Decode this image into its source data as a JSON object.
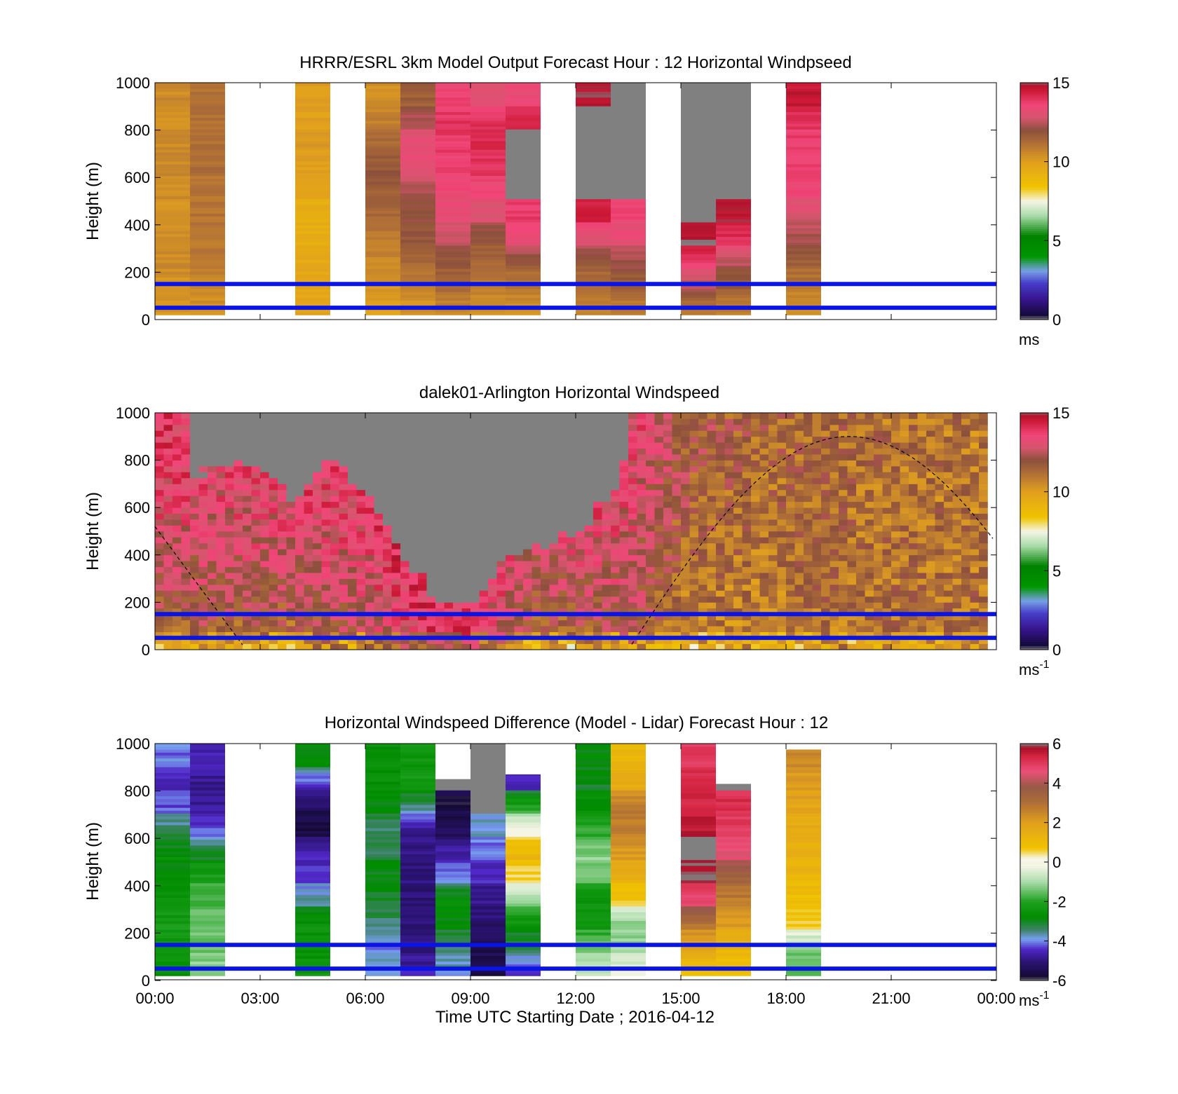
{
  "chart_data": [
    {
      "type": "heatmap",
      "id": "model",
      "title": "HRRR/ESRL 3km Model Output   Forecast Hour : 12 Horizontal Windpseed",
      "ylabel": "Height (m)",
      "xlabel": "",
      "ylim": [
        0,
        1000
      ],
      "xlim_hours": [
        0,
        24
      ],
      "y_ticks": [
        "0",
        "200",
        "400",
        "600",
        "800",
        "1000"
      ],
      "x_ticks": [],
      "colorbar": {
        "ticks": [
          "0",
          "5",
          "10",
          "15"
        ],
        "unit": "ms",
        "unit_sup": "",
        "range": [
          0,
          15
        ]
      },
      "reference_lines_m": [
        50,
        150
      ],
      "columns": [
        {
          "hour": 0,
          "top": 1000,
          "values": [
            10.2,
            10.3,
            10.5,
            10.4,
            10.3,
            10.4,
            10.6,
            10.5,
            10.4,
            10.5
          ]
        },
        {
          "hour": 1,
          "top": 1000,
          "values": [
            10.3,
            10.6,
            10.9,
            11.0,
            11.1,
            11.0,
            11.2,
            11.1,
            11.2,
            11.1
          ]
        },
        {
          "hour": 4,
          "top": 1000,
          "values": [
            9.8,
            9.7,
            9.6,
            9.5,
            9.4,
            9.6,
            10.0,
            10.1,
            10.0,
            10.0
          ]
        },
        {
          "hour": 6,
          "top": 1000,
          "values": [
            9.8,
            10.3,
            10.5,
            10.9,
            11.3,
            11.6,
            11.9,
            11.5,
            10.9,
            10.4
          ]
        },
        {
          "hour": 7,
          "top": 1000,
          "values": [
            10.2,
            10.8,
            11.3,
            11.8,
            12.0,
            12.2,
            13.2,
            13.4,
            12.6,
            11.6
          ]
        },
        {
          "hour": 8,
          "top": 1000,
          "values": [
            10.6,
            11.4,
            11.8,
            12.5,
            13.2,
            13.4,
            13.6,
            13.8,
            14.0,
            13.6
          ]
        },
        {
          "hour": 9,
          "top": 1000,
          "values": [
            10.4,
            10.9,
            11.3,
            11.8,
            12.9,
            13.4,
            13.9,
            14.1,
            14.2,
            13.0
          ]
        },
        {
          "hour": 10,
          "top": 1000,
          "values": [
            10.3,
            11.0,
            11.7,
            13.3,
            13.8,
            "nan",
            "nan",
            "nan",
            14.3,
            13.4
          ]
        },
        {
          "hour": 12,
          "top": 1000,
          "values": [
            10.6,
            11.3,
            11.6,
            13.0,
            14.3,
            "nan",
            "nan",
            "nan",
            "nan",
            14.8
          ]
        },
        {
          "hour": 13,
          "top": 1000,
          "values": [
            10.7,
            11.6,
            12.1,
            13.2,
            13.6,
            "nan",
            "nan",
            "nan",
            "nan",
            "nan"
          ]
        },
        {
          "hour": 15,
          "top": 1000,
          "values": [
            10.9,
            12.4,
            13.6,
            14.9,
            "nan",
            "nan",
            "nan",
            "nan",
            "nan",
            "nan"
          ]
        },
        {
          "hour": 16,
          "top": 1000,
          "values": [
            10.7,
            11.6,
            12.4,
            13.9,
            14.8,
            "nan",
            "nan",
            "nan",
            "nan",
            "nan"
          ]
        },
        {
          "hour": 18,
          "top": 1000,
          "values": [
            10.4,
            11.0,
            11.5,
            12.2,
            12.8,
            13.5,
            13.8,
            13.6,
            13.9,
            14.6
          ]
        }
      ]
    },
    {
      "type": "heatmap",
      "id": "lidar",
      "title": "dalek01-Arlington  Horizontal Windspeed",
      "ylabel": "Height (m)",
      "xlabel": "",
      "ylim": [
        0,
        1000
      ],
      "xlim_hours": [
        0,
        24
      ],
      "y_ticks": [
        "0",
        "200",
        "400",
        "600",
        "800",
        "1000"
      ],
      "x_ticks": [],
      "colorbar": {
        "ticks": [
          "0",
          "5",
          "10",
          "15"
        ],
        "unit": "ms",
        "unit_sup": "-1",
        "range": [
          0,
          15
        ]
      },
      "reference_lines_m": [
        50,
        150
      ],
      "column_width_hours": 0.25,
      "data_end_hour": 23.75,
      "field_anchors": {
        "hours": [
          0,
          2,
          4,
          6,
          7,
          8,
          9,
          10,
          11,
          12,
          13,
          13.5,
          15,
          17,
          19,
          21,
          23.75
        ],
        "low_ms": [
          10.6,
          10.9,
          10.4,
          11.9,
          12.8,
          13.6,
          13.4,
          11.8,
          10.3,
          10.6,
          11.2,
          11.6,
          10.2,
          10.4,
          11.0,
          11.1,
          11.3
        ],
        "high_ms": [
          14.0,
          13.8,
          14.2,
          13.9,
          14.6,
          14.8,
          14.5,
          14.2,
          14.0,
          14.3,
          13.9,
          13.6,
          12.2,
          11.5,
          11.4,
          11.2,
          11.0
        ]
      },
      "missing_region": {
        "hours": [
          1,
          2,
          3,
          4,
          5,
          6,
          7,
          8,
          9,
          10,
          11,
          12,
          13,
          13.5
        ],
        "bottom_m": [
          720,
          780,
          760,
          620,
          820,
          640,
          400,
          200,
          180,
          380,
          420,
          480,
          650,
          800
        ]
      },
      "dashed_curve": {
        "start_hour": 0,
        "peak_hour": 19.8,
        "peak_height_m": 900,
        "zero_crossings_hours": [
          2.6,
          13.5
        ]
      }
    },
    {
      "type": "heatmap",
      "id": "difference",
      "title": "Horizontal Windspeed Difference (Model - Lidar) Forecast Hour : 12",
      "ylabel": "Height (m)",
      "xlabel": "Time UTC  Starting Date ; 2016-04-12",
      "ylim": [
        0,
        1000
      ],
      "xlim_hours": [
        0,
        24
      ],
      "y_ticks": [
        "0",
        "200",
        "400",
        "600",
        "800",
        "1000"
      ],
      "x_ticks": [
        "00:00",
        "03:00",
        "06:00",
        "09:00",
        "12:00",
        "15:00",
        "18:00",
        "21:00",
        "00:00"
      ],
      "colorbar": {
        "ticks": [
          "-6",
          "-4",
          "-2",
          "0",
          "2",
          "4",
          "6"
        ],
        "unit": "ms",
        "unit_sup": "-1",
        "range": [
          -6,
          6
        ]
      },
      "reference_lines_m": [
        50,
        150
      ],
      "columns": [
        {
          "hour": 0,
          "top": 1000,
          "values": [
            -2.6,
            -2.4,
            -2.2,
            -2.5,
            -2.8,
            -2.7,
            -3.2,
            -4.2,
            -4.5,
            -4.1
          ]
        },
        {
          "hour": 1,
          "top": 1000,
          "values": [
            -1.2,
            -1.4,
            -1.5,
            -1.6,
            -2.0,
            -3.0,
            -4.2,
            -4.8,
            -4.8,
            -4.6
          ]
        },
        {
          "hour": 4,
          "top": 1000,
          "values": [
            -2.4,
            -2.6,
            -2.5,
            -3.5,
            -4.3,
            -4.6,
            -5.6,
            -5.4,
            -4.5,
            -2.8
          ]
        },
        {
          "hour": 6,
          "top": 1000,
          "values": [
            -3.8,
            -4.0,
            -3.5,
            -3.0,
            -2.8,
            -3.2,
            -3.4,
            -2.8,
            -2.6,
            -2.6
          ]
        },
        {
          "hour": 7,
          "top": 1000,
          "values": [
            -4.6,
            -5.0,
            -5.0,
            -5.1,
            -5.0,
            -4.9,
            -4.8,
            -3.6,
            -2.2,
            -2.4
          ]
        },
        {
          "hour": 8,
          "top": 850,
          "values": [
            -3.8,
            -3.4,
            -2.8,
            -2.6,
            -4.0,
            -4.6,
            -5.4,
            -5.6,
            "nan",
            "nan"
          ]
        },
        {
          "hour": 9,
          "top": 1000,
          "values": [
            -5.5,
            -5.4,
            -5.2,
            -4.9,
            -4.5,
            -4.2,
            -3.8,
            "nan",
            "nan",
            "nan"
          ]
        },
        {
          "hour": 10,
          "top": 870,
          "values": [
            -4.4,
            -3.2,
            -2.6,
            -1.2,
            0.4,
            1.2,
            0.2,
            -1.6,
            -4.6,
            "nan"
          ]
        },
        {
          "hour": 12,
          "top": 1000,
          "values": [
            -0.8,
            -1.3,
            -2.4,
            -2.5,
            -1.6,
            -1.2,
            -1.8,
            -2.6,
            -3.0,
            -2.8
          ]
        },
        {
          "hour": 13,
          "top": 1000,
          "values": [
            -0.4,
            -1.0,
            -1.4,
            0.6,
            1.4,
            2.0,
            2.6,
            2.8,
            1.6,
            1.2
          ]
        },
        {
          "hour": 15,
          "top": 1000,
          "values": [
            0.8,
            1.8,
            2.8,
            4.6,
            5.8,
            "nan",
            5.6,
            5.4,
            5.2,
            5.0
          ]
        },
        {
          "hour": 16,
          "top": 830,
          "values": [
            0.8,
            1.2,
            2.1,
            2.6,
            3.4,
            4.6,
            4.8,
            5.2,
            "nan",
            "nan"
          ]
        },
        {
          "hour": 18,
          "top": 975,
          "values": [
            -1.6,
            -1.2,
            0.6,
            0.8,
            1.2,
            1.4,
            1.6,
            1.8,
            2.0,
            2.4
          ]
        }
      ]
    }
  ]
}
